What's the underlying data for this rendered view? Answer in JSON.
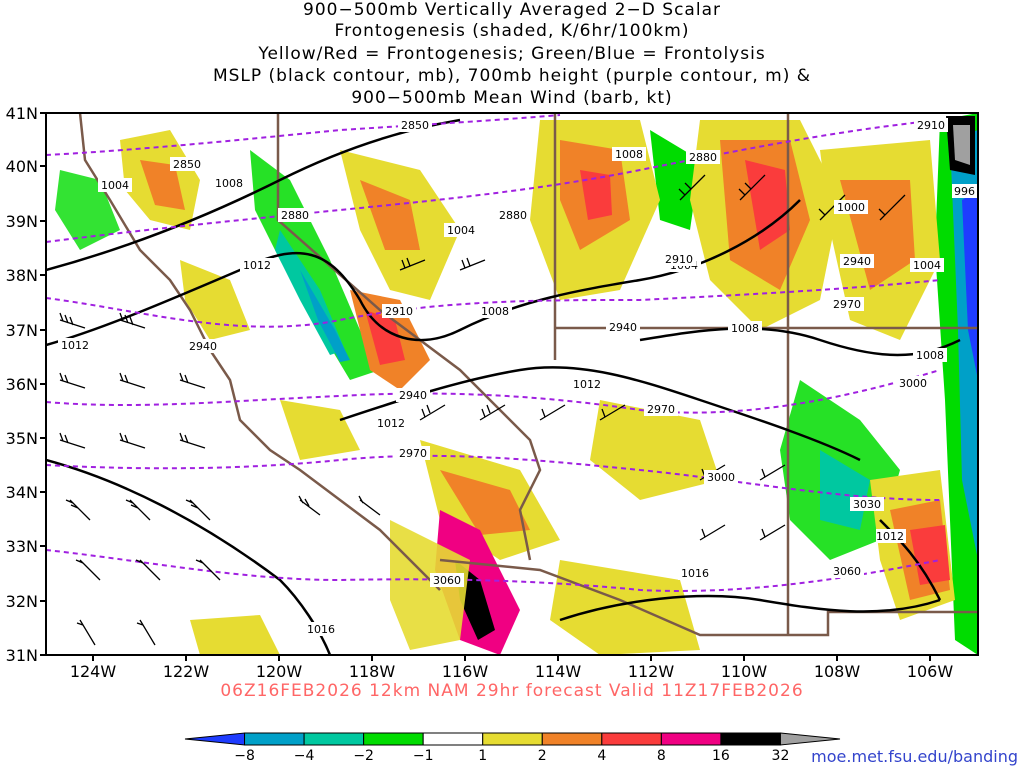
{
  "title": {
    "line1": "900−500mb Vertically Averaged 2−D Scalar",
    "line2": "Frontogenesis (shaded, K/6hr/100km)",
    "line3": "Yellow/Red = Frontogenesis;  Green/Blue = Frontolysis",
    "line4": "MSLP (black contour, mb), 700mb height (purple contour, m) &",
    "line5": "900−500mb Mean Wind (barb, kt)"
  },
  "axes": {
    "lat_labels": [
      "41N",
      "40N",
      "39N",
      "38N",
      "37N",
      "36N",
      "35N",
      "34N",
      "33N",
      "32N",
      "31N"
    ],
    "lon_labels": [
      "124W",
      "122W",
      "120W",
      "118W",
      "116W",
      "114W",
      "112W",
      "110W",
      "108W",
      "106W"
    ]
  },
  "valid_line": "06Z16FEB2026 12km NAM 29hr forecast Valid 11Z17FEB2026",
  "credit": "moe.met.fsu.edu/banding",
  "colorbar": {
    "labels": [
      "−8",
      "−4",
      "−2",
      "−1",
      "1",
      "2",
      "4",
      "8",
      "16",
      "32"
    ],
    "colors": [
      "#1e3cff",
      "#00a0c8",
      "#00c8a0",
      "#00dc00",
      "#ffffff",
      "#e6dc32",
      "#f08228",
      "#fa3c3c",
      "#f00082",
      "#000000",
      "#a0a0a0"
    ]
  },
  "mslp_labels": [
    "1004",
    "1008",
    "1012",
    "1012",
    "1012",
    "1004",
    "1004",
    "1008",
    "1008",
    "1012",
    "1008",
    "1000",
    "1004",
    "996",
    "1016",
    "1016",
    "1012",
    "1008"
  ],
  "height_labels": [
    "2850",
    "2850",
    "2880",
    "2880",
    "2880",
    "2910",
    "2910",
    "2910",
    "2940",
    "2940",
    "2940",
    "2970",
    "2970",
    "3000",
    "3000",
    "3030",
    "3060",
    "3060",
    "2940",
    "2970"
  ]
}
